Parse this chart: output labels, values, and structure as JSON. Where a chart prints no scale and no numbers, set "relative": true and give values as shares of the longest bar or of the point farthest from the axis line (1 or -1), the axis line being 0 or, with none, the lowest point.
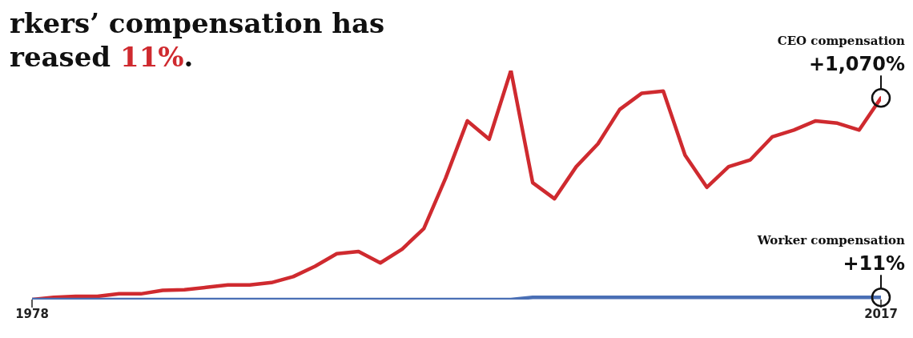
{
  "chart_data": {
    "type": "line",
    "title": "rkers’ compensation has\nreased 11%.",
    "relative": true,
    "x": [
      1978,
      1979,
      1980,
      1981,
      1982,
      1983,
      1984,
      1985,
      1986,
      1987,
      1988,
      1989,
      1990,
      1991,
      1992,
      1993,
      1994,
      1995,
      1996,
      1997,
      1998,
      1999,
      2000,
      2001,
      2002,
      2003,
      2004,
      2005,
      2006,
      2007,
      2008,
      2009,
      2010,
      2011,
      2012,
      2013,
      2014,
      2015,
      2016,
      2017
    ],
    "xlim": [
      1978,
      2017
    ],
    "xticks": [
      1978,
      2017
    ],
    "grid": false,
    "legend": false,
    "marker": "none",
    "line_style": "solid",
    "series": [
      {
        "color": "#cf2a2f",
        "values": [
          0,
          0.01,
          0.014,
          0.014,
          0.025,
          0.025,
          0.04,
          0.043,
          0.053,
          0.064,
          0.064,
          0.074,
          0.1,
          0.145,
          0.2,
          0.21,
          0.16,
          0.22,
          0.31,
          0.53,
          0.78,
          0.7,
          1,
          0.51,
          0.44,
          0.58,
          0.68,
          0.83,
          0.9,
          0.91,
          0.63,
          0.49,
          0.58,
          0.61,
          0.71,
          0.74,
          0.78,
          0.77,
          0.74,
          0.88
        ]
      },
      {
        "color": "#4a6fb5",
        "values": [
          0,
          0,
          0,
          0,
          0,
          0,
          0,
          0,
          0,
          0,
          0,
          0,
          0,
          0,
          0,
          0,
          0,
          0,
          0,
          0,
          0,
          0,
          0,
          0.01,
          0.01,
          0.01,
          0.01,
          0.01,
          0.01,
          0.01,
          0.01,
          0.01,
          0.01,
          0.01,
          0.01,
          0.01,
          0.01,
          0.01,
          0.01,
          0.01
        ]
      }
    ],
    "annotations": [
      {
        "text": "CEO compensation\n+1,070%",
        "x": 2017,
        "y": 0.88
      },
      {
        "text": "Worker compensation\n+11%",
        "x": 2017,
        "y": 0.01
      }
    ]
  }
}
